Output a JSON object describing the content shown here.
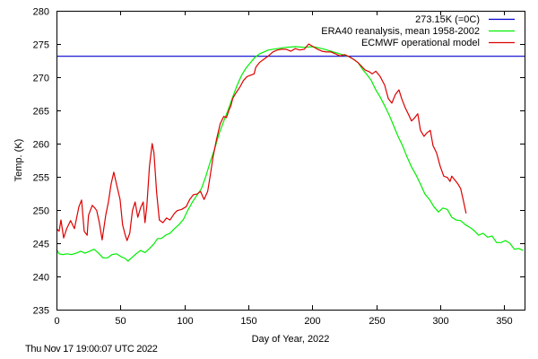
{
  "chart_data": {
    "type": "line",
    "title": "",
    "xlabel": "Day of Year, 2022",
    "ylabel": "Temp. (K)",
    "xlim": [
      0,
      366
    ],
    "ylim": [
      235,
      280
    ],
    "xticks": [
      0,
      50,
      100,
      150,
      200,
      250,
      300,
      350
    ],
    "yticks": [
      235,
      240,
      245,
      250,
      255,
      260,
      265,
      270,
      275,
      280
    ],
    "xtick_labels": [
      "0",
      "50",
      "100",
      "150",
      "200",
      "250",
      "300",
      "350"
    ],
    "ytick_labels": [
      "235",
      "240",
      "245",
      "250",
      "255",
      "260",
      "265",
      "270",
      "275",
      "280"
    ],
    "grid": false,
    "legend_position": "top-right",
    "series": [
      {
        "name": "273.15K (=0C)",
        "color": "#0000cc",
        "x": [
          0,
          366
        ],
        "y": [
          273.15,
          273.15
        ]
      },
      {
        "name": "ERA40 reanalysis, mean 1958-2002",
        "color": "#00ee00",
        "x": [
          0,
          2,
          4.9,
          8.4,
          11.9,
          15.4,
          18.9,
          22.4,
          25.9,
          29.4,
          32.9,
          36.4,
          39.9,
          43.4,
          46.9,
          50.3,
          53.8,
          55.9,
          58.7,
          62.2,
          65.7,
          69.2,
          72.7,
          76.2,
          79,
          81.8,
          85.3,
          88.8,
          92.3,
          95.8,
          99.3,
          102.8,
          106.3,
          109.8,
          113.3,
          116.8,
          120.3,
          123.8,
          127.3,
          130.8,
          134.3,
          137.8,
          141.3,
          144.8,
          148.3,
          151.7,
          155.2,
          158.7,
          162.2,
          165.7,
          172.7,
          179.7,
          186.7,
          193.7,
          200.7,
          207.7,
          214.7,
          221.7,
          228.7,
          232.2,
          235.7,
          239.2,
          242.7,
          246.2,
          249.7,
          253.1,
          256.6,
          260.1,
          263.6,
          267.1,
          270.6,
          274.1,
          277.6,
          281.1,
          284.6,
          288.1,
          291.6,
          295.1,
          298.6,
          302.1,
          305.6,
          309.1,
          312.6,
          316.1,
          319.6,
          323.1,
          326.6,
          330.1,
          333.6,
          337.1,
          340.6,
          344.1,
          347.6,
          351,
          354.5,
          358,
          361.5,
          365
        ],
        "y": [
          244.1,
          243.4,
          243.3,
          243.4,
          243.3,
          243.5,
          243.8,
          243.5,
          243.8,
          244.1,
          243.5,
          242.8,
          242.8,
          243.3,
          243.4,
          243.0,
          242.7,
          242.3,
          242.8,
          243.4,
          243.9,
          243.6,
          244.2,
          244.9,
          245.7,
          245.7,
          246.2,
          246.5,
          247.2,
          247.8,
          248.6,
          250.0,
          251.2,
          252.2,
          253.2,
          255.1,
          257.3,
          259.3,
          261.6,
          263.4,
          265.1,
          267.0,
          268.8,
          270.3,
          271.4,
          272.2,
          273.0,
          273.5,
          273.8,
          274.1,
          274.3,
          274.5,
          274.6,
          274.5,
          274.6,
          274.3,
          273.9,
          273.5,
          273.1,
          272.7,
          272.2,
          271.2,
          270.4,
          269.5,
          268.1,
          267.0,
          265.7,
          264.3,
          262.7,
          261.1,
          259.7,
          258.0,
          256.5,
          255.3,
          253.9,
          252.4,
          251.6,
          250.5,
          249.7,
          250.3,
          250.1,
          248.9,
          248.5,
          248.4,
          247.8,
          247.4,
          246.9,
          246.2,
          246.5,
          245.9,
          246.1,
          245.1,
          245.1,
          245.4,
          245.0,
          244.1,
          244.2,
          243.9
        ]
      },
      {
        "name": "ECMWF operational model",
        "color": "#dd0000",
        "x": [
          0,
          2,
          3.5,
          5.6,
          8,
          11,
          14,
          17.5,
          19.6,
          21.7,
          24,
          25,
          28,
          30,
          31.5,
          33.5,
          35.7,
          38.5,
          40.6,
          42.7,
          44.8,
          46.9,
          49.7,
          51.7,
          53.8,
          55.2,
          57.3,
          59.4,
          61.5,
          63.6,
          65.7,
          67.8,
          69.2,
          70.6,
          72.7,
          74.8,
          76.2,
          78.3,
          80.4,
          83.2,
          86,
          88.8,
          92.3,
          94.4,
          97.9,
          101.4,
          104.2,
          107,
          109.8,
          112.6,
          115.4,
          118.2,
          120.3,
          122.4,
          125.2,
          128,
          130.8,
          132.9,
          135,
          136.4,
          137.8,
          140.6,
          143.4,
          146.2,
          149,
          151.7,
          154.5,
          155.9,
          158.7,
          162.2,
          165.7,
          169.2,
          172.7,
          176.2,
          179.7,
          183.2,
          186.7,
          190.2,
          193.7,
          197.2,
          200.7,
          204.2,
          207.7,
          211.2,
          214.7,
          218.2,
          221.7,
          225.2,
          228.7,
          232.2,
          235.7,
          239.2,
          241.3,
          244.8,
          246.9,
          249.7,
          253.1,
          256.6,
          259.4,
          262.2,
          265,
          267.8,
          269.9,
          272.7,
          275.5,
          277.6,
          279.7,
          282.5,
          284.6,
          287.4,
          289.5,
          292.3,
          294.4,
          297.2,
          300,
          302.8,
          305.6,
          307.7,
          309.1,
          311.2,
          314,
          316.1,
          318.2,
          320.3
        ],
        "y": [
          247.2,
          246.8,
          248.5,
          245.8,
          247.2,
          248.4,
          247.2,
          250.5,
          251.5,
          246.8,
          246.2,
          249.2,
          250.7,
          250.3,
          249.9,
          248.1,
          245.5,
          249.2,
          251.2,
          253.9,
          255.7,
          253.9,
          251.6,
          247.8,
          246.2,
          245.4,
          246.5,
          249.9,
          251.2,
          248.9,
          250.3,
          251.2,
          248.1,
          250.5,
          256.6,
          260.0,
          258.6,
          252.6,
          248.5,
          248.1,
          248.8,
          248.5,
          249.5,
          249.9,
          250.1,
          250.5,
          251.6,
          252.3,
          252.4,
          252.8,
          251.6,
          252.8,
          255.3,
          258.0,
          260.7,
          263.0,
          264.1,
          263.9,
          265.1,
          265.7,
          266.8,
          267.7,
          268.5,
          269.5,
          270.1,
          270.3,
          270.5,
          271.5,
          272.2,
          272.7,
          273.2,
          273.8,
          274.1,
          274.2,
          274.2,
          273.9,
          274.3,
          274.1,
          274.2,
          275.0,
          274.6,
          274.2,
          273.9,
          273.8,
          273.8,
          273.5,
          273.2,
          273.4,
          273.1,
          272.7,
          272.2,
          271.5,
          271.1,
          270.8,
          270.5,
          270.9,
          270.1,
          268.8,
          266.8,
          266.1,
          267.4,
          268.1,
          266.8,
          265.4,
          264.3,
          263.4,
          263.8,
          264.5,
          262.0,
          261.1,
          261.6,
          262.0,
          259.7,
          258.6,
          256.6,
          255.1,
          254.9,
          254.3,
          255.1,
          254.6,
          253.9,
          253.2,
          251.4,
          249.5
        ]
      }
    ]
  },
  "footer": {
    "timestamp": "Thu Nov 17 19:00:07 UTC 2022"
  }
}
